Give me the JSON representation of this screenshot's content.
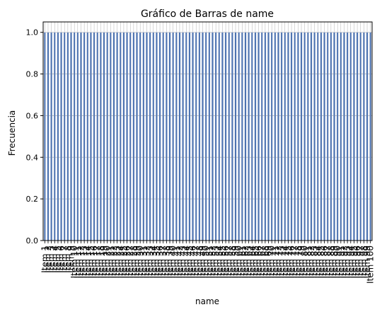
{
  "chart_data": {
    "type": "bar",
    "title": "Gráfico de Barras de name",
    "xlabel": "name",
    "ylabel": "Frecuencia",
    "categories": [
      "Item 1",
      "Item 2",
      "Item 3",
      "Item 4",
      "Item 5",
      "Item 6",
      "Item 7",
      "Item 8",
      "Item 9",
      "Item 10",
      "Item 11",
      "Item 12",
      "Item 13",
      "Item 14",
      "Item 15",
      "Item 16",
      "Item 17",
      "Item 18",
      "Item 19",
      "Item 20",
      "Item 21",
      "Item 22",
      "Item 23",
      "Item 24",
      "Item 25",
      "Item 26",
      "Item 27",
      "Item 28",
      "Item 29",
      "Item 30",
      "Item 31",
      "Item 32",
      "Item 33",
      "Item 34",
      "Item 35",
      "Item 36",
      "Item 37",
      "Item 38",
      "Item 39",
      "Item 40",
      "Item 41",
      "Item 42",
      "Item 43",
      "Item 44",
      "Item 45",
      "Item 46",
      "Item 47",
      "Item 48",
      "Item 49",
      "Item 50",
      "Item 51",
      "Item 52",
      "Item 53",
      "Item 54",
      "Item 55",
      "Item 56",
      "Item 57",
      "Item 58",
      "Item 59",
      "Item 60",
      "Item 61",
      "Item 62",
      "Item 63",
      "Item 64",
      "Item 65",
      "Item 66",
      "Item 67",
      "Item 68",
      "Item 69",
      "Item 70",
      "Item 71",
      "Item 72",
      "Item 73",
      "Item 74",
      "Item 75",
      "Item 76",
      "Item 77",
      "Item 78",
      "Item 79",
      "Item 80",
      "Item 81",
      "Item 82",
      "Item 83",
      "Item 84",
      "Item 85",
      "Item 86",
      "Item 87",
      "Item 88",
      "Item 89",
      "Item 90",
      "Item 91",
      "Item 92",
      "Item 93",
      "Item 94",
      "Item 95",
      "Item 96",
      "Item 97",
      "Item 98",
      "Item 99",
      "Item 100"
    ],
    "values": [
      1,
      1,
      1,
      1,
      1,
      1,
      1,
      1,
      1,
      1,
      1,
      1,
      1,
      1,
      1,
      1,
      1,
      1,
      1,
      1,
      1,
      1,
      1,
      1,
      1,
      1,
      1,
      1,
      1,
      1,
      1,
      1,
      1,
      1,
      1,
      1,
      1,
      1,
      1,
      1,
      1,
      1,
      1,
      1,
      1,
      1,
      1,
      1,
      1,
      1,
      1,
      1,
      1,
      1,
      1,
      1,
      1,
      1,
      1,
      1,
      1,
      1,
      1,
      1,
      1,
      1,
      1,
      1,
      1,
      1,
      1,
      1,
      1,
      1,
      1,
      1,
      1,
      1,
      1,
      1,
      1,
      1,
      1,
      1,
      1,
      1,
      1,
      1,
      1,
      1,
      1,
      1,
      1,
      1,
      1,
      1,
      1,
      1,
      1,
      1
    ],
    "ylim": [
      0,
      1.05
    ],
    "yticks": [
      "0.0",
      "0.2",
      "0.4",
      "0.6",
      "0.8",
      "1.0"
    ],
    "grid": true,
    "bar_color": "#4c72b0",
    "bar_edge_color": "#dde3f0",
    "grid_color": "#b0b0b0"
  }
}
